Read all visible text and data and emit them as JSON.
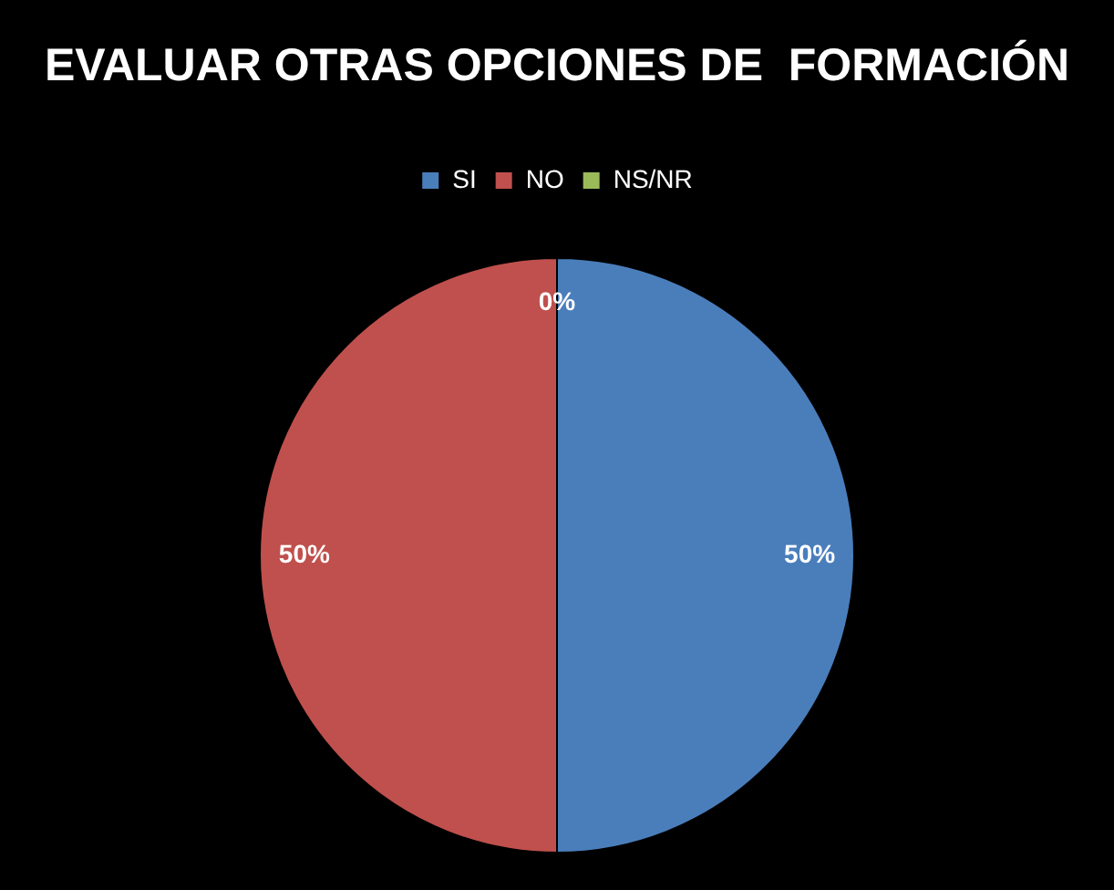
{
  "chart_data": {
    "type": "pie",
    "title": "EVALUAR OTRAS OPCIONES DE  FORMACIÓN",
    "categories": [
      "SI",
      "NO",
      "NS/NR"
    ],
    "values": [
      50,
      50,
      0
    ],
    "colors": [
      "#4a7ebb",
      "#c0504d",
      "#9bbb59"
    ],
    "value_labels": [
      "50%",
      "50%",
      "0%"
    ],
    "legend": "top"
  }
}
